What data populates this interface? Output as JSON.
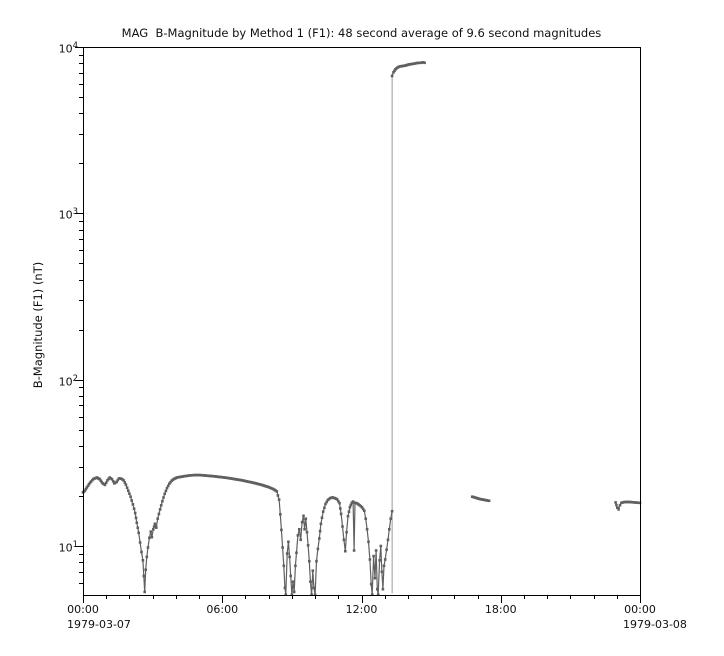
{
  "chart_data": {
    "type": "line",
    "title": "MAG  B-Magnitude by Method 1 (F1): 48 second average of 9.6 second magnitudes",
    "xlabel": "",
    "ylabel": "B-Magnitude (F1) (nT)",
    "x_axis": {
      "unit": "time of day (hours)",
      "range_hours": [
        0,
        24
      ],
      "major_tick_hours": [
        0,
        6,
        12,
        18,
        24
      ],
      "minor_tick_every_hours": 1,
      "tick_labels": [
        "00:00",
        "06:00",
        "12:00",
        "18:00",
        "00:00"
      ],
      "start_date": "1979-03-07",
      "end_date": "1979-03-08"
    },
    "y_axis": {
      "scale": "log",
      "range": [
        5.07,
        10000
      ],
      "major_tick_exponents": [
        4,
        3,
        2,
        1
      ],
      "tick_label_base": "10",
      "grid": false
    },
    "legend": null,
    "colors": {
      "data": "#606060",
      "connector": "#9a9a9a",
      "axis": "#000000",
      "background": "#ffffff"
    },
    "series": [
      {
        "name": "main-trace",
        "points": [
          [
            0.0,
            21.0
          ],
          [
            0.08,
            21.5
          ],
          [
            0.17,
            22.5
          ],
          [
            0.3,
            24.0
          ],
          [
            0.45,
            25.3
          ],
          [
            0.6,
            25.8
          ],
          [
            0.72,
            25.2
          ],
          [
            0.85,
            23.8
          ],
          [
            0.95,
            23.3
          ],
          [
            1.05,
            24.8
          ],
          [
            1.15,
            25.8
          ],
          [
            1.25,
            25.2
          ],
          [
            1.35,
            23.8
          ],
          [
            1.45,
            24.3
          ],
          [
            1.55,
            25.5
          ],
          [
            1.65,
            25.4
          ],
          [
            1.75,
            24.8
          ],
          [
            1.85,
            23.4
          ],
          [
            1.95,
            21.5
          ],
          [
            2.05,
            19.8
          ],
          [
            2.15,
            17.8
          ],
          [
            2.25,
            15.8
          ],
          [
            2.32,
            13.8
          ],
          [
            2.4,
            12.0
          ],
          [
            2.46,
            10.5
          ],
          [
            2.52,
            9.2
          ],
          [
            2.58,
            8.2
          ],
          [
            2.62,
            6.6
          ],
          [
            2.66,
            5.3
          ],
          [
            2.7,
            7.2
          ],
          [
            2.75,
            8.6
          ],
          [
            2.8,
            9.8
          ],
          [
            2.86,
            11.2
          ],
          [
            2.92,
            12.2
          ],
          [
            2.97,
            11.3
          ],
          [
            3.03,
            12.6
          ],
          [
            3.1,
            13.6
          ],
          [
            3.16,
            12.9
          ],
          [
            3.22,
            14.6
          ],
          [
            3.32,
            16.6
          ],
          [
            3.42,
            18.6
          ],
          [
            3.52,
            20.6
          ],
          [
            3.62,
            22.3
          ],
          [
            3.72,
            23.7
          ],
          [
            3.82,
            24.7
          ],
          [
            3.92,
            25.3
          ],
          [
            4.05,
            25.8
          ],
          [
            4.25,
            26.1
          ],
          [
            4.45,
            26.4
          ],
          [
            4.65,
            26.6
          ],
          [
            4.85,
            26.7
          ],
          [
            5.05,
            26.7
          ],
          [
            5.3,
            26.5
          ],
          [
            5.6,
            26.3
          ],
          [
            5.9,
            26.0
          ],
          [
            6.2,
            25.7
          ],
          [
            6.5,
            25.3
          ],
          [
            6.8,
            24.9
          ],
          [
            7.1,
            24.4
          ],
          [
            7.4,
            23.9
          ],
          [
            7.7,
            23.3
          ],
          [
            8.0,
            22.6
          ],
          [
            8.2,
            22.0
          ],
          [
            8.35,
            21.3
          ],
          [
            8.45,
            19.0
          ],
          [
            8.5,
            15.5
          ],
          [
            8.55,
            12.5
          ],
          [
            8.6,
            9.8
          ],
          [
            8.65,
            7.6
          ],
          [
            8.7,
            5.6
          ],
          [
            8.74,
            5.1
          ],
          [
            8.8,
            9.0
          ],
          [
            8.85,
            10.6
          ],
          [
            8.9,
            8.6
          ],
          [
            8.95,
            6.6
          ],
          [
            9.0,
            5.1
          ],
          [
            9.05,
            6.1
          ],
          [
            9.1,
            5.3
          ],
          [
            9.15,
            7.6
          ],
          [
            9.2,
            9.1
          ],
          [
            9.26,
            11.6
          ],
          [
            9.32,
            12.6
          ],
          [
            9.38,
            10.9
          ],
          [
            9.44,
            13.9
          ],
          [
            9.5,
            15.2
          ],
          [
            9.55,
            12.6
          ],
          [
            9.6,
            14.6
          ],
          [
            9.65,
            12.1
          ],
          [
            9.7,
            10.1
          ],
          [
            9.75,
            8.1
          ],
          [
            9.8,
            6.1
          ],
          [
            9.85,
            5.1
          ],
          [
            9.9,
            7.1
          ],
          [
            9.95,
            5.6
          ],
          [
            10.0,
            5.1
          ],
          [
            10.06,
            8.1
          ],
          [
            10.12,
            9.6
          ],
          [
            10.18,
            11.1
          ],
          [
            10.25,
            13.6
          ],
          [
            10.35,
            16.1
          ],
          [
            10.45,
            17.9
          ],
          [
            10.55,
            18.9
          ],
          [
            10.65,
            19.4
          ],
          [
            10.75,
            19.6
          ],
          [
            10.85,
            19.4
          ],
          [
            10.95,
            19.1
          ],
          [
            11.05,
            18.1
          ],
          [
            11.12,
            15.6
          ],
          [
            11.18,
            13.1
          ],
          [
            11.24,
            10.9
          ],
          [
            11.3,
            9.3
          ],
          [
            11.36,
            12.1
          ],
          [
            11.42,
            15.1
          ],
          [
            11.5,
            17.1
          ],
          [
            11.58,
            18.2
          ],
          [
            11.64,
            18.5
          ],
          [
            11.68,
            9.4
          ],
          [
            11.72,
            18.2
          ],
          [
            11.82,
            18.0
          ],
          [
            11.92,
            17.6
          ],
          [
            12.02,
            17.1
          ],
          [
            12.12,
            16.3
          ],
          [
            12.18,
            14.6
          ],
          [
            12.24,
            12.6
          ],
          [
            12.3,
            10.6
          ],
          [
            12.36,
            8.3
          ],
          [
            12.42,
            5.9
          ],
          [
            12.46,
            5.1
          ],
          [
            12.52,
            8.7
          ],
          [
            12.58,
            6.4
          ],
          [
            12.63,
            9.4
          ],
          [
            12.68,
            5.5
          ],
          [
            12.72,
            5.1
          ],
          [
            12.78,
            8.2
          ],
          [
            12.83,
            10.0
          ],
          [
            12.88,
            7.0
          ],
          [
            12.92,
            5.5
          ],
          [
            12.97,
            7.6
          ],
          [
            13.02,
            8.3
          ],
          [
            13.08,
            9.5
          ],
          [
            13.14,
            10.9
          ],
          [
            13.2,
            12.6
          ],
          [
            13.26,
            14.6
          ],
          [
            13.32,
            16.2
          ]
        ]
      },
      {
        "name": "high-field-spike",
        "points": [
          [
            13.32,
            6700
          ],
          [
            13.38,
            7050
          ],
          [
            13.46,
            7350
          ],
          [
            13.56,
            7550
          ],
          [
            13.66,
            7650
          ],
          [
            13.78,
            7700
          ],
          [
            13.9,
            7750
          ],
          [
            14.02,
            7850
          ],
          [
            14.14,
            7900
          ],
          [
            14.26,
            7950
          ],
          [
            14.36,
            8000
          ],
          [
            14.46,
            8050
          ],
          [
            14.56,
            8050
          ],
          [
            14.66,
            8100
          ],
          [
            14.72,
            8050
          ]
        ]
      },
      {
        "name": "segment-late-afternoon",
        "points": [
          [
            16.77,
            19.8
          ],
          [
            16.92,
            19.5
          ],
          [
            17.08,
            19.2
          ],
          [
            17.24,
            19.0
          ],
          [
            17.4,
            18.8
          ],
          [
            17.5,
            18.7
          ]
        ]
      },
      {
        "name": "segment-end-of-day",
        "points": [
          [
            22.95,
            18.3
          ],
          [
            23.02,
            17.0
          ],
          [
            23.08,
            16.6
          ],
          [
            23.14,
            17.6
          ],
          [
            23.2,
            18.2
          ],
          [
            23.35,
            18.4
          ],
          [
            23.55,
            18.4
          ],
          [
            23.75,
            18.3
          ],
          [
            23.95,
            18.2
          ],
          [
            24.0,
            18.2
          ]
        ]
      }
    ],
    "connector_line": {
      "t_hours": 13.32,
      "value_from": 5.2,
      "value_to": 6900
    }
  }
}
